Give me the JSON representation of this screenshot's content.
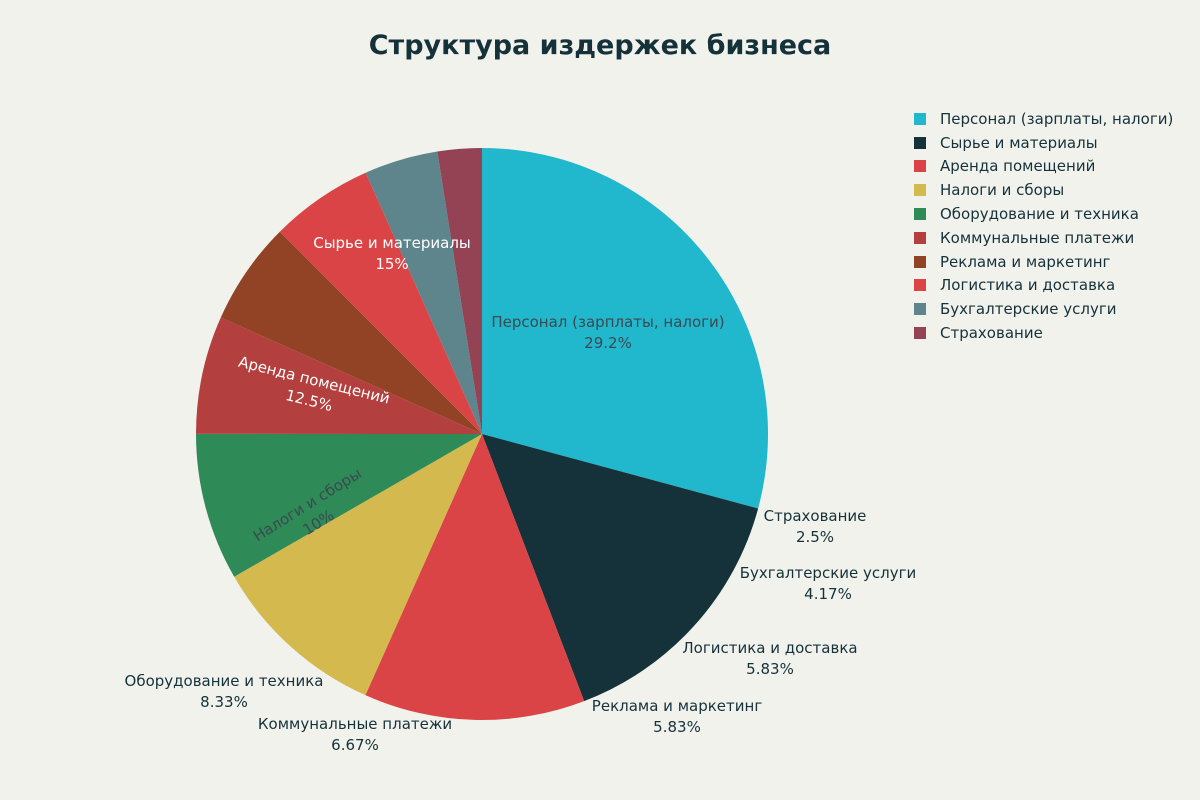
{
  "title": "Структура издержек бизнеса",
  "colors": {
    "background": "#f2f2ed",
    "text": "#15323b"
  },
  "legend": {
    "position": "right",
    "items": [
      {
        "label": "Персонал (зарплаты, налоги)",
        "color": "#21b7cd"
      },
      {
        "label": "Сырье и материалы",
        "color": "#15323b"
      },
      {
        "label": "Аренда помещений",
        "color": "#db4446"
      },
      {
        "label": "Налоги и сборы",
        "color": "#d3b94e"
      },
      {
        "label": "Оборудование и техника",
        "color": "#2e8a57"
      },
      {
        "label": "Коммунальные платежи",
        "color": "#b3403e"
      },
      {
        "label": "Реклама и маркетинг",
        "color": "#924225"
      },
      {
        "label": "Логистика и доставка",
        "color": "#db4446"
      },
      {
        "label": "Бухгалтерские услуги",
        "color": "#5e858c"
      },
      {
        "label": "Страхование",
        "color": "#934354"
      }
    ]
  },
  "chart_data": {
    "type": "pie",
    "title": "Структура издержек бизнеса",
    "categories": [
      "Персонал (зарплаты, налоги)",
      "Сырье и материалы",
      "Аренда помещений",
      "Налоги и сборы",
      "Оборудование и техника",
      "Коммунальные платежи",
      "Реклама и маркетинг",
      "Логистика и доставка",
      "Бухгалтерские услуги",
      "Страхование"
    ],
    "values": [
      29.2,
      15,
      12.5,
      10,
      8.33,
      6.67,
      5.83,
      5.83,
      4.17,
      2.5
    ],
    "value_labels": [
      "29.2%",
      "15%",
      "12.5%",
      "10%",
      "8.33%",
      "6.67%",
      "5.83%",
      "5.83%",
      "4.17%",
      "2.5%"
    ],
    "colors": [
      "#21b7cd",
      "#15323b",
      "#db4446",
      "#d3b94e",
      "#2e8a57",
      "#b3403e",
      "#924225",
      "#db4446",
      "#5e858c",
      "#934354"
    ],
    "start_angle": "12 o'clock",
    "direction": "clockwise",
    "legend_position": "right",
    "label_mode": "label + percent"
  }
}
